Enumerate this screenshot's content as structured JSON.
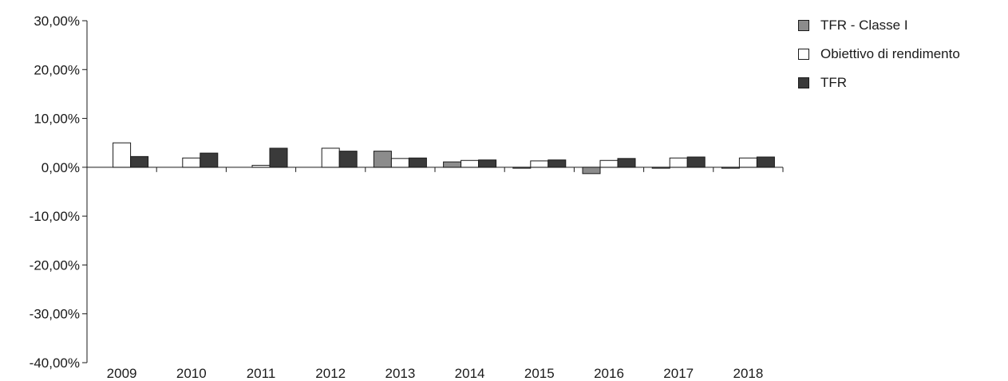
{
  "chart_data": {
    "type": "bar",
    "title": "",
    "xlabel": "",
    "ylabel": "",
    "categories": [
      "2009",
      "2010",
      "2011",
      "2012",
      "2013",
      "2014",
      "2015",
      "2016",
      "2017",
      "2018"
    ],
    "series": [
      {
        "name": "TFR - Classe I",
        "color": "#8c8c8c",
        "values": [
          null,
          null,
          null,
          null,
          3.3,
          1.1,
          -0.2,
          -1.3,
          -0.2,
          -0.2
        ]
      },
      {
        "name": "Obiettivo di rendimento",
        "color": "#ffffff",
        "values": [
          5.0,
          1.9,
          0.4,
          3.9,
          1.8,
          1.4,
          1.3,
          1.4,
          1.9,
          1.9
        ]
      },
      {
        "name": "TFR",
        "color": "#3a3a3a",
        "values": [
          2.2,
          2.9,
          3.9,
          3.3,
          1.9,
          1.5,
          1.5,
          1.8,
          2.1,
          2.1
        ]
      }
    ],
    "ylim": [
      -40,
      30
    ],
    "yticks": [
      30,
      20,
      10,
      0,
      -10,
      -20,
      -30,
      -40
    ],
    "ytick_labels": [
      "30,00%",
      "20,00%",
      "10,00%",
      "0,00%",
      "-10,00%",
      "-20,00%",
      "-30,00%",
      "-40,00%"
    ],
    "grid": false,
    "legend_position": "top-right"
  }
}
